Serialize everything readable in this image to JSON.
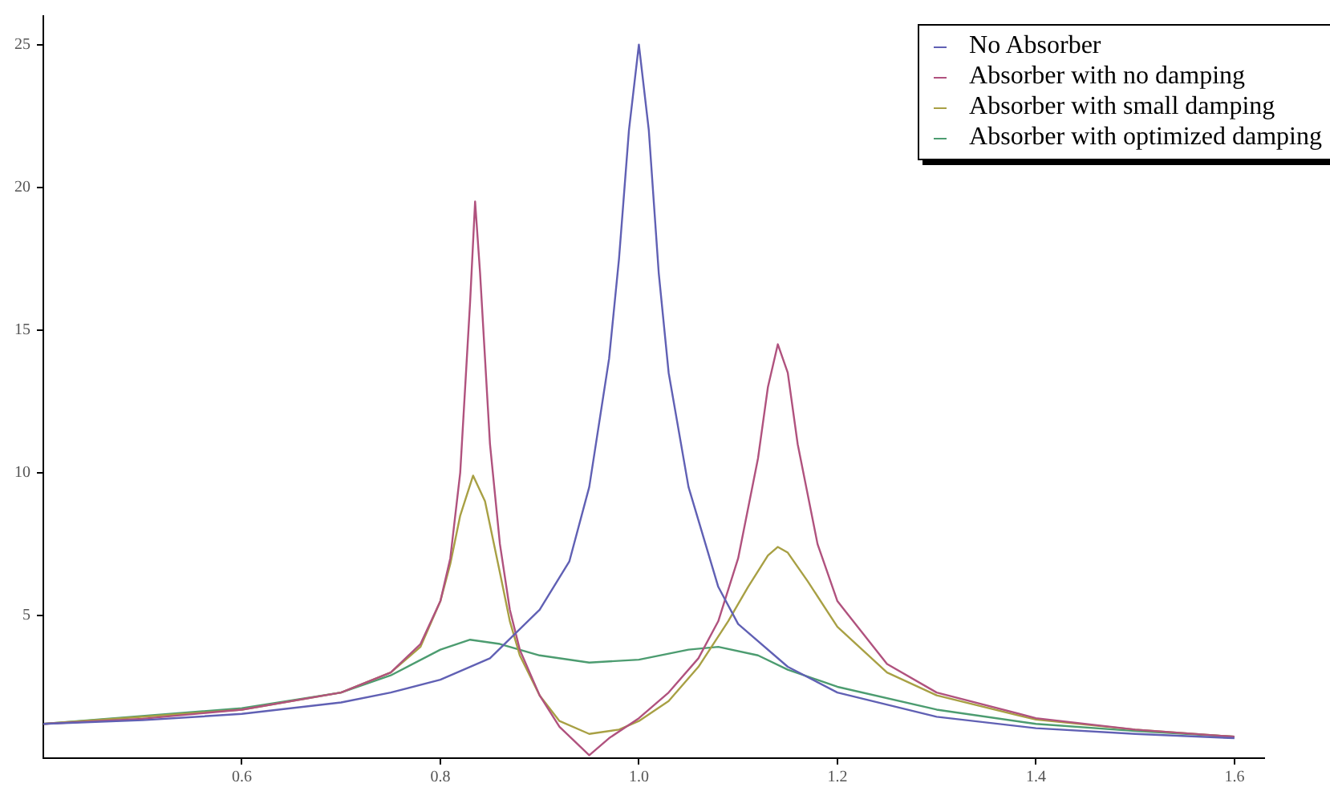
{
  "chart_data": {
    "type": "line",
    "xlim": [
      0.4,
      1.63
    ],
    "xticks": [
      0.6,
      0.8,
      {
        "value": 1.0,
        "label": "1.0"
      },
      1.2,
      1.4,
      1.6
    ],
    "ylim": [
      0,
      26
    ],
    "yticks": [
      5,
      10,
      15,
      20,
      25
    ],
    "grid": false,
    "legend": "top right",
    "marker": "none",
    "line_style": "solid",
    "series": [
      {
        "name": "No Absorber",
        "color": "#6060b4",
        "x": [
          0.4,
          0.5,
          0.6,
          0.7,
          0.75,
          0.8,
          0.85,
          0.9,
          0.93,
          0.95,
          0.97,
          0.98,
          0.99,
          1.0,
          1.01,
          1.02,
          1.03,
          1.05,
          1.08,
          1.1,
          1.15,
          1.2,
          1.3,
          1.4,
          1.5,
          1.6
        ],
        "values": [
          1.2,
          1.33,
          1.55,
          1.95,
          2.3,
          2.75,
          3.5,
          5.2,
          6.9,
          9.5,
          14,
          17.5,
          22,
          25,
          22,
          17,
          13.5,
          9.5,
          6,
          4.7,
          3.2,
          2.3,
          1.45,
          1.05,
          0.85,
          0.7
        ]
      },
      {
        "name": "Absorber with no damping",
        "color": "#b0527e",
        "x": [
          0.4,
          0.5,
          0.6,
          0.7,
          0.75,
          0.78,
          0.8,
          0.81,
          0.82,
          0.83,
          0.835,
          0.84,
          0.85,
          0.86,
          0.87,
          0.88,
          0.9,
          0.92,
          0.95,
          0.97,
          1.0,
          1.03,
          1.06,
          1.08,
          1.1,
          1.12,
          1.13,
          1.14,
          1.15,
          1.16,
          1.18,
          1.2,
          1.25,
          1.3,
          1.4,
          1.5,
          1.6
        ],
        "values": [
          1.2,
          1.38,
          1.7,
          2.3,
          3.0,
          4.0,
          5.5,
          7,
          10,
          16,
          19.5,
          17,
          11,
          7.5,
          5.2,
          3.8,
          2.2,
          1.1,
          0.1,
          0.7,
          1.4,
          2.3,
          3.5,
          4.8,
          7,
          10.5,
          13,
          14.5,
          13.5,
          11,
          7.5,
          5.5,
          3.3,
          2.3,
          1.4,
          1.0,
          0.75
        ]
      },
      {
        "name": "Absorber with small damping",
        "color": "#a8a044",
        "x": [
          0.4,
          0.6,
          0.7,
          0.75,
          0.78,
          0.8,
          0.81,
          0.82,
          0.833,
          0.845,
          0.86,
          0.87,
          0.88,
          0.9,
          0.92,
          0.95,
          0.98,
          1.0,
          1.03,
          1.06,
          1.09,
          1.11,
          1.13,
          1.14,
          1.15,
          1.17,
          1.2,
          1.25,
          1.3,
          1.4,
          1.5,
          1.6
        ],
        "values": [
          1.2,
          1.7,
          2.3,
          3.0,
          3.9,
          5.5,
          6.8,
          8.5,
          9.9,
          9,
          6.5,
          4.8,
          3.6,
          2.2,
          1.3,
          0.85,
          1.0,
          1.3,
          2.0,
          3.2,
          4.8,
          6.0,
          7.1,
          7.4,
          7.2,
          6.2,
          4.6,
          3.0,
          2.2,
          1.35,
          1.0,
          0.75
        ]
      },
      {
        "name": "Absorber with optimized damping",
        "color": "#4c9c70",
        "x": [
          0.4,
          0.6,
          0.7,
          0.75,
          0.8,
          0.83,
          0.86,
          0.9,
          0.95,
          1.0,
          1.05,
          1.08,
          1.12,
          1.15,
          1.2,
          1.3,
          1.4,
          1.5,
          1.6
        ],
        "values": [
          1.2,
          1.75,
          2.3,
          2.9,
          3.8,
          4.15,
          4.0,
          3.6,
          3.35,
          3.45,
          3.8,
          3.9,
          3.6,
          3.1,
          2.5,
          1.7,
          1.2,
          0.95,
          0.75
        ]
      }
    ]
  }
}
